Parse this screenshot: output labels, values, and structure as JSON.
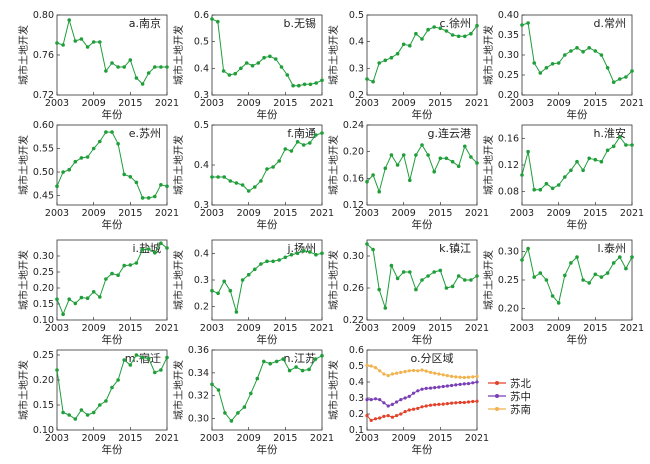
{
  "charts": {
    "xlabel": "年份",
    "ylabel": "城市土地开发",
    "xticks": [
      "2003",
      "2009",
      "2015",
      "2021"
    ],
    "series_color": "#1f9e3a",
    "panels": [
      {
        "id": "a",
        "title": "a.南京",
        "ylim": [
          0.72,
          0.8
        ],
        "yticks": [
          "0.72",
          "0.76",
          "0.80"
        ],
        "values": [
          0.772,
          0.77,
          0.795,
          0.774,
          0.776,
          0.768,
          0.773,
          0.773,
          0.744,
          0.752,
          0.748,
          0.748,
          0.755,
          0.737,
          0.731,
          0.742,
          0.748,
          0.748,
          0.748
        ]
      },
      {
        "id": "b",
        "title": "b.无锡",
        "ylim": [
          0.3,
          0.6
        ],
        "yticks": [
          "0.3",
          "0.4",
          "0.5",
          "0.6"
        ],
        "values": [
          0.585,
          0.575,
          0.39,
          0.375,
          0.38,
          0.4,
          0.42,
          0.41,
          0.42,
          0.44,
          0.445,
          0.435,
          0.405,
          0.375,
          0.335,
          0.335,
          0.34,
          0.34,
          0.345,
          0.355
        ]
      },
      {
        "id": "c",
        "title": "c.徐州",
        "ylim": [
          0.2,
          0.5
        ],
        "yticks": [
          "0.2",
          "0.3",
          "0.4",
          "0.5"
        ],
        "values": [
          0.26,
          0.25,
          0.32,
          0.33,
          0.34,
          0.355,
          0.39,
          0.385,
          0.43,
          0.41,
          0.445,
          0.455,
          0.45,
          0.44,
          0.425,
          0.42,
          0.42,
          0.43,
          0.46
        ]
      },
      {
        "id": "d",
        "title": "d.常州",
        "ylim": [
          0.2,
          0.4
        ],
        "yticks": [
          "0.20",
          "0.25",
          "0.30",
          "0.35",
          "0.40"
        ],
        "values": [
          0.375,
          0.38,
          0.28,
          0.255,
          0.268,
          0.278,
          0.28,
          0.3,
          0.31,
          0.318,
          0.308,
          0.318,
          0.31,
          0.3,
          0.268,
          0.232,
          0.24,
          0.245,
          0.26
        ]
      },
      {
        "id": "e",
        "title": "e.苏州",
        "ylim": [
          0.43,
          0.6
        ],
        "yticks": [
          "0.45",
          "0.50",
          "0.55",
          "0.60"
        ],
        "values": [
          0.47,
          0.5,
          0.505,
          0.522,
          0.53,
          0.532,
          0.55,
          0.565,
          0.585,
          0.585,
          0.56,
          0.495,
          0.49,
          0.478,
          0.445,
          0.445,
          0.448,
          0.473,
          0.47
        ]
      },
      {
        "id": "f",
        "title": "f.南通",
        "ylim": [
          0.3,
          0.5
        ],
        "yticks": [
          "0.3",
          "0.4",
          "0.5"
        ],
        "values": [
          0.37,
          0.37,
          0.37,
          0.36,
          0.355,
          0.35,
          0.335,
          0.345,
          0.36,
          0.39,
          0.395,
          0.41,
          0.44,
          0.435,
          0.458,
          0.45,
          0.455,
          0.475,
          0.48
        ]
      },
      {
        "id": "g",
        "title": "g.连云港",
        "ylim": [
          0.12,
          0.24
        ],
        "yticks": [
          "0.12",
          "0.16",
          "0.20",
          "0.24"
        ],
        "values": [
          0.155,
          0.165,
          0.14,
          0.175,
          0.195,
          0.18,
          0.195,
          0.157,
          0.195,
          0.21,
          0.195,
          0.17,
          0.19,
          0.19,
          0.185,
          0.178,
          0.208,
          0.192,
          0.183
        ]
      },
      {
        "id": "h",
        "title": "h.淮安",
        "ylim": [
          0.06,
          0.18
        ],
        "yticks": [
          "0.08",
          "0.12",
          "0.16"
        ],
        "values": [
          0.105,
          0.14,
          0.083,
          0.083,
          0.092,
          0.085,
          0.09,
          0.102,
          0.112,
          0.125,
          0.112,
          0.13,
          0.128,
          0.125,
          0.142,
          0.148,
          0.162,
          0.15,
          0.15
        ]
      },
      {
        "id": "i",
        "title": "i.盐城",
        "ylim": [
          0.1,
          0.35
        ],
        "yticks": [
          "0.10",
          "0.15",
          "0.20",
          "0.25",
          "0.30"
        ],
        "values": [
          0.165,
          0.118,
          0.165,
          0.152,
          0.17,
          0.168,
          0.188,
          0.172,
          0.228,
          0.245,
          0.24,
          0.27,
          0.272,
          0.278,
          0.32,
          0.322,
          0.31,
          0.34,
          0.325
        ]
      },
      {
        "id": "j",
        "title": "j.扬州",
        "ylim": [
          0.15,
          0.45
        ],
        "yticks": [
          "0.2",
          "0.3",
          "0.4"
        ],
        "values": [
          0.26,
          0.25,
          0.295,
          0.26,
          0.18,
          0.3,
          0.32,
          0.34,
          0.36,
          0.37,
          0.37,
          0.375,
          0.385,
          0.395,
          0.4,
          0.41,
          0.405,
          0.395,
          0.4
        ]
      },
      {
        "id": "k",
        "title": "k.镇江",
        "ylim": [
          0.22,
          0.32
        ],
        "yticks": [
          "0.22",
          "0.26",
          "0.30"
        ],
        "values": [
          0.315,
          0.308,
          0.258,
          0.235,
          0.288,
          0.272,
          0.28,
          0.28,
          0.258,
          0.27,
          0.275,
          0.28,
          0.282,
          0.26,
          0.262,
          0.275,
          0.27,
          0.27,
          0.275
        ]
      },
      {
        "id": "l",
        "title": "l.泰州",
        "ylim": [
          0.18,
          0.32
        ],
        "yticks": [
          "0.20",
          "0.25",
          "0.30"
        ],
        "values": [
          0.285,
          0.305,
          0.255,
          0.262,
          0.25,
          0.222,
          0.21,
          0.258,
          0.28,
          0.29,
          0.25,
          0.245,
          0.26,
          0.255,
          0.262,
          0.28,
          0.29,
          0.27,
          0.29
        ]
      },
      {
        "id": "m",
        "title": "m.宿迁",
        "ylim": [
          0.1,
          0.26
        ],
        "yticks": [
          "0.10",
          "0.15",
          "0.20",
          "0.25"
        ],
        "values": [
          0.22,
          0.135,
          0.13,
          0.122,
          0.14,
          0.13,
          0.135,
          0.15,
          0.158,
          0.185,
          0.2,
          0.24,
          0.23,
          0.25,
          0.245,
          0.243,
          0.215,
          0.22,
          0.245
        ]
      },
      {
        "id": "n",
        "title": "n.江苏",
        "ylim": [
          0.29,
          0.36
        ],
        "yticks": [
          "0.30",
          "0.32",
          "0.34",
          "0.36"
        ],
        "values": [
          0.33,
          0.325,
          0.305,
          0.298,
          0.305,
          0.31,
          0.322,
          0.335,
          0.35,
          0.348,
          0.35,
          0.352,
          0.342,
          0.345,
          0.342,
          0.343,
          0.352,
          0.355
        ]
      }
    ],
    "region_panel": {
      "title": "o.分区域",
      "ylim": [
        0.1,
        0.6
      ],
      "yticks": [
        "0.1",
        "0.2",
        "0.3",
        "0.4",
        "0.5",
        "0.6"
      ],
      "series": [
        {
          "name": "苏北",
          "color": "#e2412a",
          "values": [
            0.19,
            0.16,
            0.17,
            0.175,
            0.185,
            0.19,
            0.18,
            0.19,
            0.2,
            0.215,
            0.225,
            0.23,
            0.235,
            0.245,
            0.25,
            0.255,
            0.258,
            0.26,
            0.262,
            0.265,
            0.268,
            0.27,
            0.272,
            0.272,
            0.275,
            0.278,
            0.28
          ]
        },
        {
          "name": "苏中",
          "color": "#7a3fb5",
          "values": [
            0.29,
            0.29,
            0.295,
            0.29,
            0.27,
            0.25,
            0.26,
            0.275,
            0.29,
            0.3,
            0.31,
            0.33,
            0.345,
            0.355,
            0.36,
            0.362,
            0.365,
            0.368,
            0.372,
            0.375,
            0.378,
            0.382,
            0.385,
            0.388,
            0.39,
            0.395,
            0.4
          ]
        },
        {
          "name": "苏南",
          "color": "#f2b24c",
          "values": [
            0.505,
            0.5,
            0.49,
            0.47,
            0.45,
            0.44,
            0.45,
            0.455,
            0.46,
            0.465,
            0.47,
            0.472,
            0.47,
            0.475,
            0.468,
            0.46,
            0.455,
            0.45,
            0.445,
            0.44,
            0.435,
            0.432,
            0.43,
            0.428,
            0.43,
            0.432,
            0.435
          ]
        }
      ]
    }
  }
}
